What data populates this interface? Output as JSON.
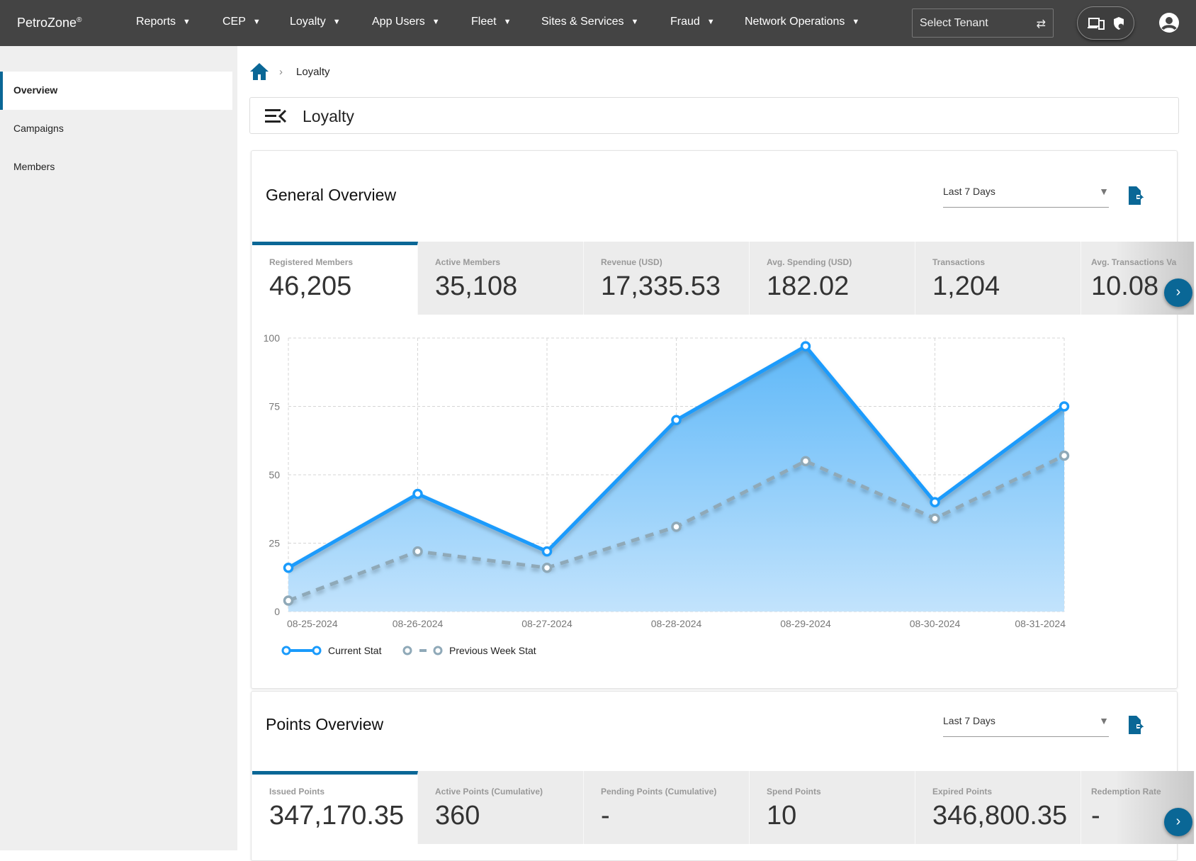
{
  "app": {
    "brand": "PetroZone",
    "brand_mark": "®"
  },
  "nav": [
    {
      "label": "Reports"
    },
    {
      "label": "CEP"
    },
    {
      "label": "Loyalty"
    },
    {
      "label": "App Users"
    },
    {
      "label": "Fleet"
    },
    {
      "label": "Sites & Services"
    },
    {
      "label": "Fraud"
    },
    {
      "label": "Network Operations"
    }
  ],
  "tenant": {
    "placeholder": "Select Tenant",
    "icon": "swap-icon"
  },
  "sidebar": {
    "items": [
      {
        "label": "Overview",
        "active": true
      },
      {
        "label": "Campaigns"
      },
      {
        "label": "Members"
      }
    ]
  },
  "breadcrumb": {
    "current": "Loyalty"
  },
  "page": {
    "title": "Loyalty"
  },
  "general": {
    "title": "General Overview",
    "range": "Last 7 Days",
    "stats": [
      {
        "label": "Registered Members",
        "value": "46,205"
      },
      {
        "label": "Active Members",
        "value": "35,108"
      },
      {
        "label": "Revenue (USD)",
        "value": "17,335.53"
      },
      {
        "label": "Avg. Spending (USD)",
        "value": "182.02"
      },
      {
        "label": "Transactions",
        "value": "1,204"
      },
      {
        "label": "Avg. Transactions Va",
        "value": "10.08"
      }
    ]
  },
  "points": {
    "title": "Points Overview",
    "range": "Last 7 Days",
    "stats": [
      {
        "label": "Issued Points",
        "value": "347,170.35"
      },
      {
        "label": "Active Points (Cumulative)",
        "value": "360"
      },
      {
        "label": "Pending Points (Cumulative)",
        "value": "-"
      },
      {
        "label": "Spend Points",
        "value": "10"
      },
      {
        "label": "Expired Points",
        "value": "346,800.35"
      },
      {
        "label": "Redemption Rate",
        "value": "-"
      }
    ]
  },
  "chart_data": {
    "type": "area",
    "categories": [
      "08-25-2024",
      "08-26-2024",
      "08-27-2024",
      "08-28-2024",
      "08-29-2024",
      "08-30-2024",
      "08-31-2024"
    ],
    "yticks": [
      "0",
      "25",
      "50",
      "75",
      "100"
    ],
    "ylim": [
      0,
      100
    ],
    "grid": true,
    "legend": "bottom-left",
    "series": [
      {
        "name": "Current Stat",
        "values": [
          16,
          43,
          22,
          70,
          97,
          40,
          75
        ],
        "color": "#1a9bfc"
      },
      {
        "name": "Previous Week Stat",
        "values": [
          4,
          22,
          16,
          31,
          55,
          34,
          57
        ],
        "color": "#8fa9b8"
      }
    ]
  }
}
